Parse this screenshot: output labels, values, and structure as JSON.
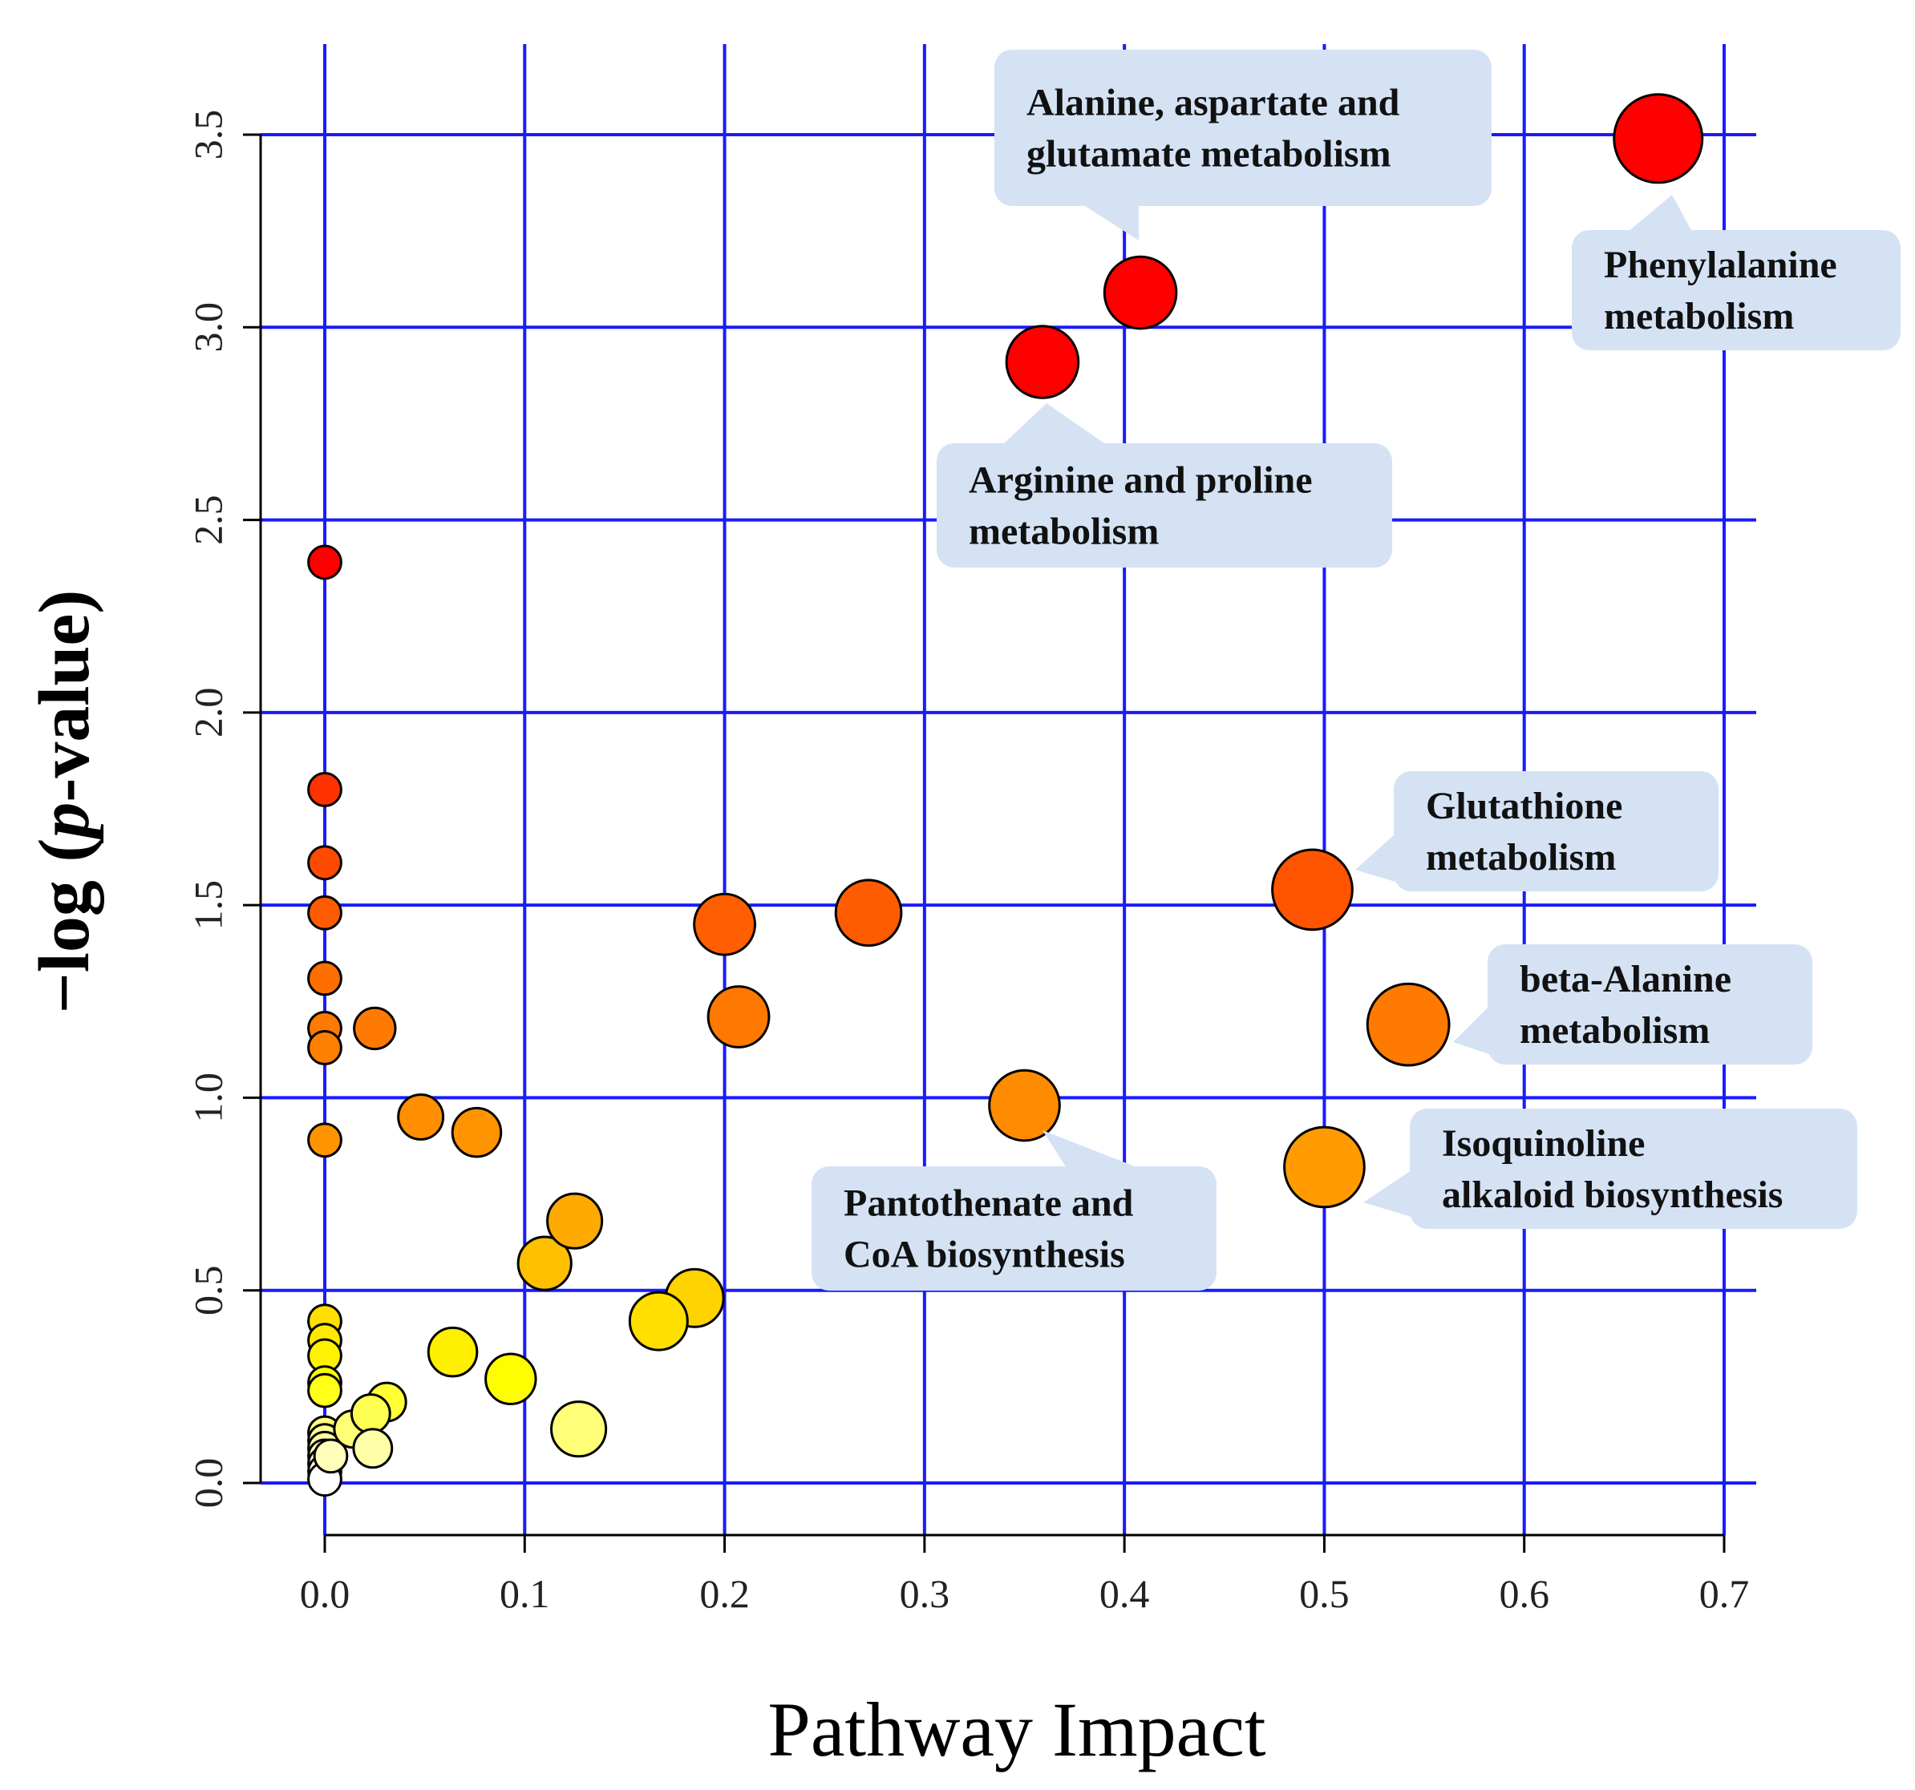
{
  "chart_data": {
    "type": "scatter",
    "xlabel": "Pathway Impact",
    "ylabel_prefix": "−log (",
    "ylabel_italic": "p",
    "ylabel_suffix": "-value)",
    "xlim": [
      -0.032,
      0.72
    ],
    "ylim": [
      -0.1,
      3.72
    ],
    "x_ticks": [
      "0.0",
      "0.1",
      "0.2",
      "0.3",
      "0.4",
      "0.5",
      "0.6",
      "0.7"
    ],
    "y_ticks": [
      "0.0",
      "0.5",
      "1.0",
      "1.5",
      "2.0",
      "2.5",
      "3.0",
      "3.5"
    ],
    "grid": true,
    "grid_color": "#1a1aff",
    "color_scale": [
      "#ffffff",
      "#ffff00",
      "#ffa500",
      "#ff6a00",
      "#ff0000"
    ],
    "points": [
      {
        "x": 0.667,
        "y": 3.49,
        "size": 1.0
      },
      {
        "x": 0.408,
        "y": 3.09,
        "size": 0.8
      },
      {
        "x": 0.359,
        "y": 2.91,
        "size": 0.8
      },
      {
        "x": 0.0,
        "y": 2.39,
        "size": 0.28
      },
      {
        "x": 0.0,
        "y": 1.8,
        "size": 0.28
      },
      {
        "x": 0.0,
        "y": 1.61,
        "size": 0.28
      },
      {
        "x": 0.0,
        "y": 1.48,
        "size": 0.28
      },
      {
        "x": 0.0,
        "y": 1.31,
        "size": 0.28
      },
      {
        "x": 0.0,
        "y": 1.18,
        "size": 0.28
      },
      {
        "x": 0.0,
        "y": 1.13,
        "size": 0.28
      },
      {
        "x": 0.0,
        "y": 0.89,
        "size": 0.28
      },
      {
        "x": 0.0,
        "y": 0.42,
        "size": 0.28
      },
      {
        "x": 0.0,
        "y": 0.37,
        "size": 0.28
      },
      {
        "x": 0.0,
        "y": 0.33,
        "size": 0.28
      },
      {
        "x": 0.0,
        "y": 0.26,
        "size": 0.28
      },
      {
        "x": 0.0,
        "y": 0.24,
        "size": 0.28
      },
      {
        "x": 0.0,
        "y": 0.13,
        "size": 0.28
      },
      {
        "x": 0.0,
        "y": 0.11,
        "size": 0.28
      },
      {
        "x": 0.0,
        "y": 0.09,
        "size": 0.28
      },
      {
        "x": 0.0,
        "y": 0.07,
        "size": 0.28
      },
      {
        "x": 0.0,
        "y": 0.05,
        "size": 0.28
      },
      {
        "x": 0.0,
        "y": 0.03,
        "size": 0.28
      },
      {
        "x": 0.0,
        "y": 0.01,
        "size": 0.28
      },
      {
        "x": 0.003,
        "y": 0.07,
        "size": 0.28
      },
      {
        "x": 0.025,
        "y": 1.18,
        "size": 0.4
      },
      {
        "x": 0.048,
        "y": 0.95,
        "size": 0.45
      },
      {
        "x": 0.076,
        "y": 0.91,
        "size": 0.5
      },
      {
        "x": 0.125,
        "y": 0.68,
        "size": 0.58
      },
      {
        "x": 0.11,
        "y": 0.57,
        "size": 0.56
      },
      {
        "x": 0.185,
        "y": 0.48,
        "size": 0.62
      },
      {
        "x": 0.167,
        "y": 0.42,
        "size": 0.62
      },
      {
        "x": 0.064,
        "y": 0.34,
        "size": 0.5
      },
      {
        "x": 0.093,
        "y": 0.27,
        "size": 0.52
      },
      {
        "x": 0.031,
        "y": 0.21,
        "size": 0.36
      },
      {
        "x": 0.023,
        "y": 0.18,
        "size": 0.36
      },
      {
        "x": 0.014,
        "y": 0.14,
        "size": 0.34
      },
      {
        "x": 0.024,
        "y": 0.09,
        "size": 0.36
      },
      {
        "x": 0.127,
        "y": 0.14,
        "size": 0.58
      },
      {
        "x": 0.2,
        "y": 1.45,
        "size": 0.66
      },
      {
        "x": 0.207,
        "y": 1.21,
        "size": 0.66
      },
      {
        "x": 0.272,
        "y": 1.48,
        "size": 0.72
      },
      {
        "x": 0.35,
        "y": 0.98,
        "size": 0.78
      },
      {
        "x": 0.494,
        "y": 1.54,
        "size": 0.9
      },
      {
        "x": 0.542,
        "y": 1.19,
        "size": 0.92
      },
      {
        "x": 0.5,
        "y": 0.82,
        "size": 0.9
      }
    ],
    "annotations": [
      {
        "id": "alanine",
        "lines": [
          "Alanine, aspartate and",
          "glutamate metabolism"
        ],
        "target": [
          0.408,
          3.09
        ]
      },
      {
        "id": "phenylalanine",
        "lines": [
          "Phenylalanine",
          "metabolism"
        ],
        "target": [
          0.667,
          3.49
        ]
      },
      {
        "id": "arginine",
        "lines": [
          "Arginine and proline",
          " metabolism"
        ],
        "target": [
          0.359,
          2.91
        ]
      },
      {
        "id": "glutathione",
        "lines": [
          "Glutathione",
          "metabolism"
        ],
        "target": [
          0.494,
          1.54
        ]
      },
      {
        "id": "beta-alanine",
        "lines": [
          "beta-Alanine",
          "metabolism"
        ],
        "target": [
          0.542,
          1.19
        ]
      },
      {
        "id": "pantothenate",
        "lines": [
          "Pantothenate and",
          "CoA biosynthesis"
        ],
        "target": [
          0.35,
          0.98
        ]
      },
      {
        "id": "isoquinoline",
        "lines": [
          "Isoquinoline",
          "alkaloid biosynthesis"
        ],
        "target": [
          0.5,
          0.82
        ]
      }
    ]
  }
}
